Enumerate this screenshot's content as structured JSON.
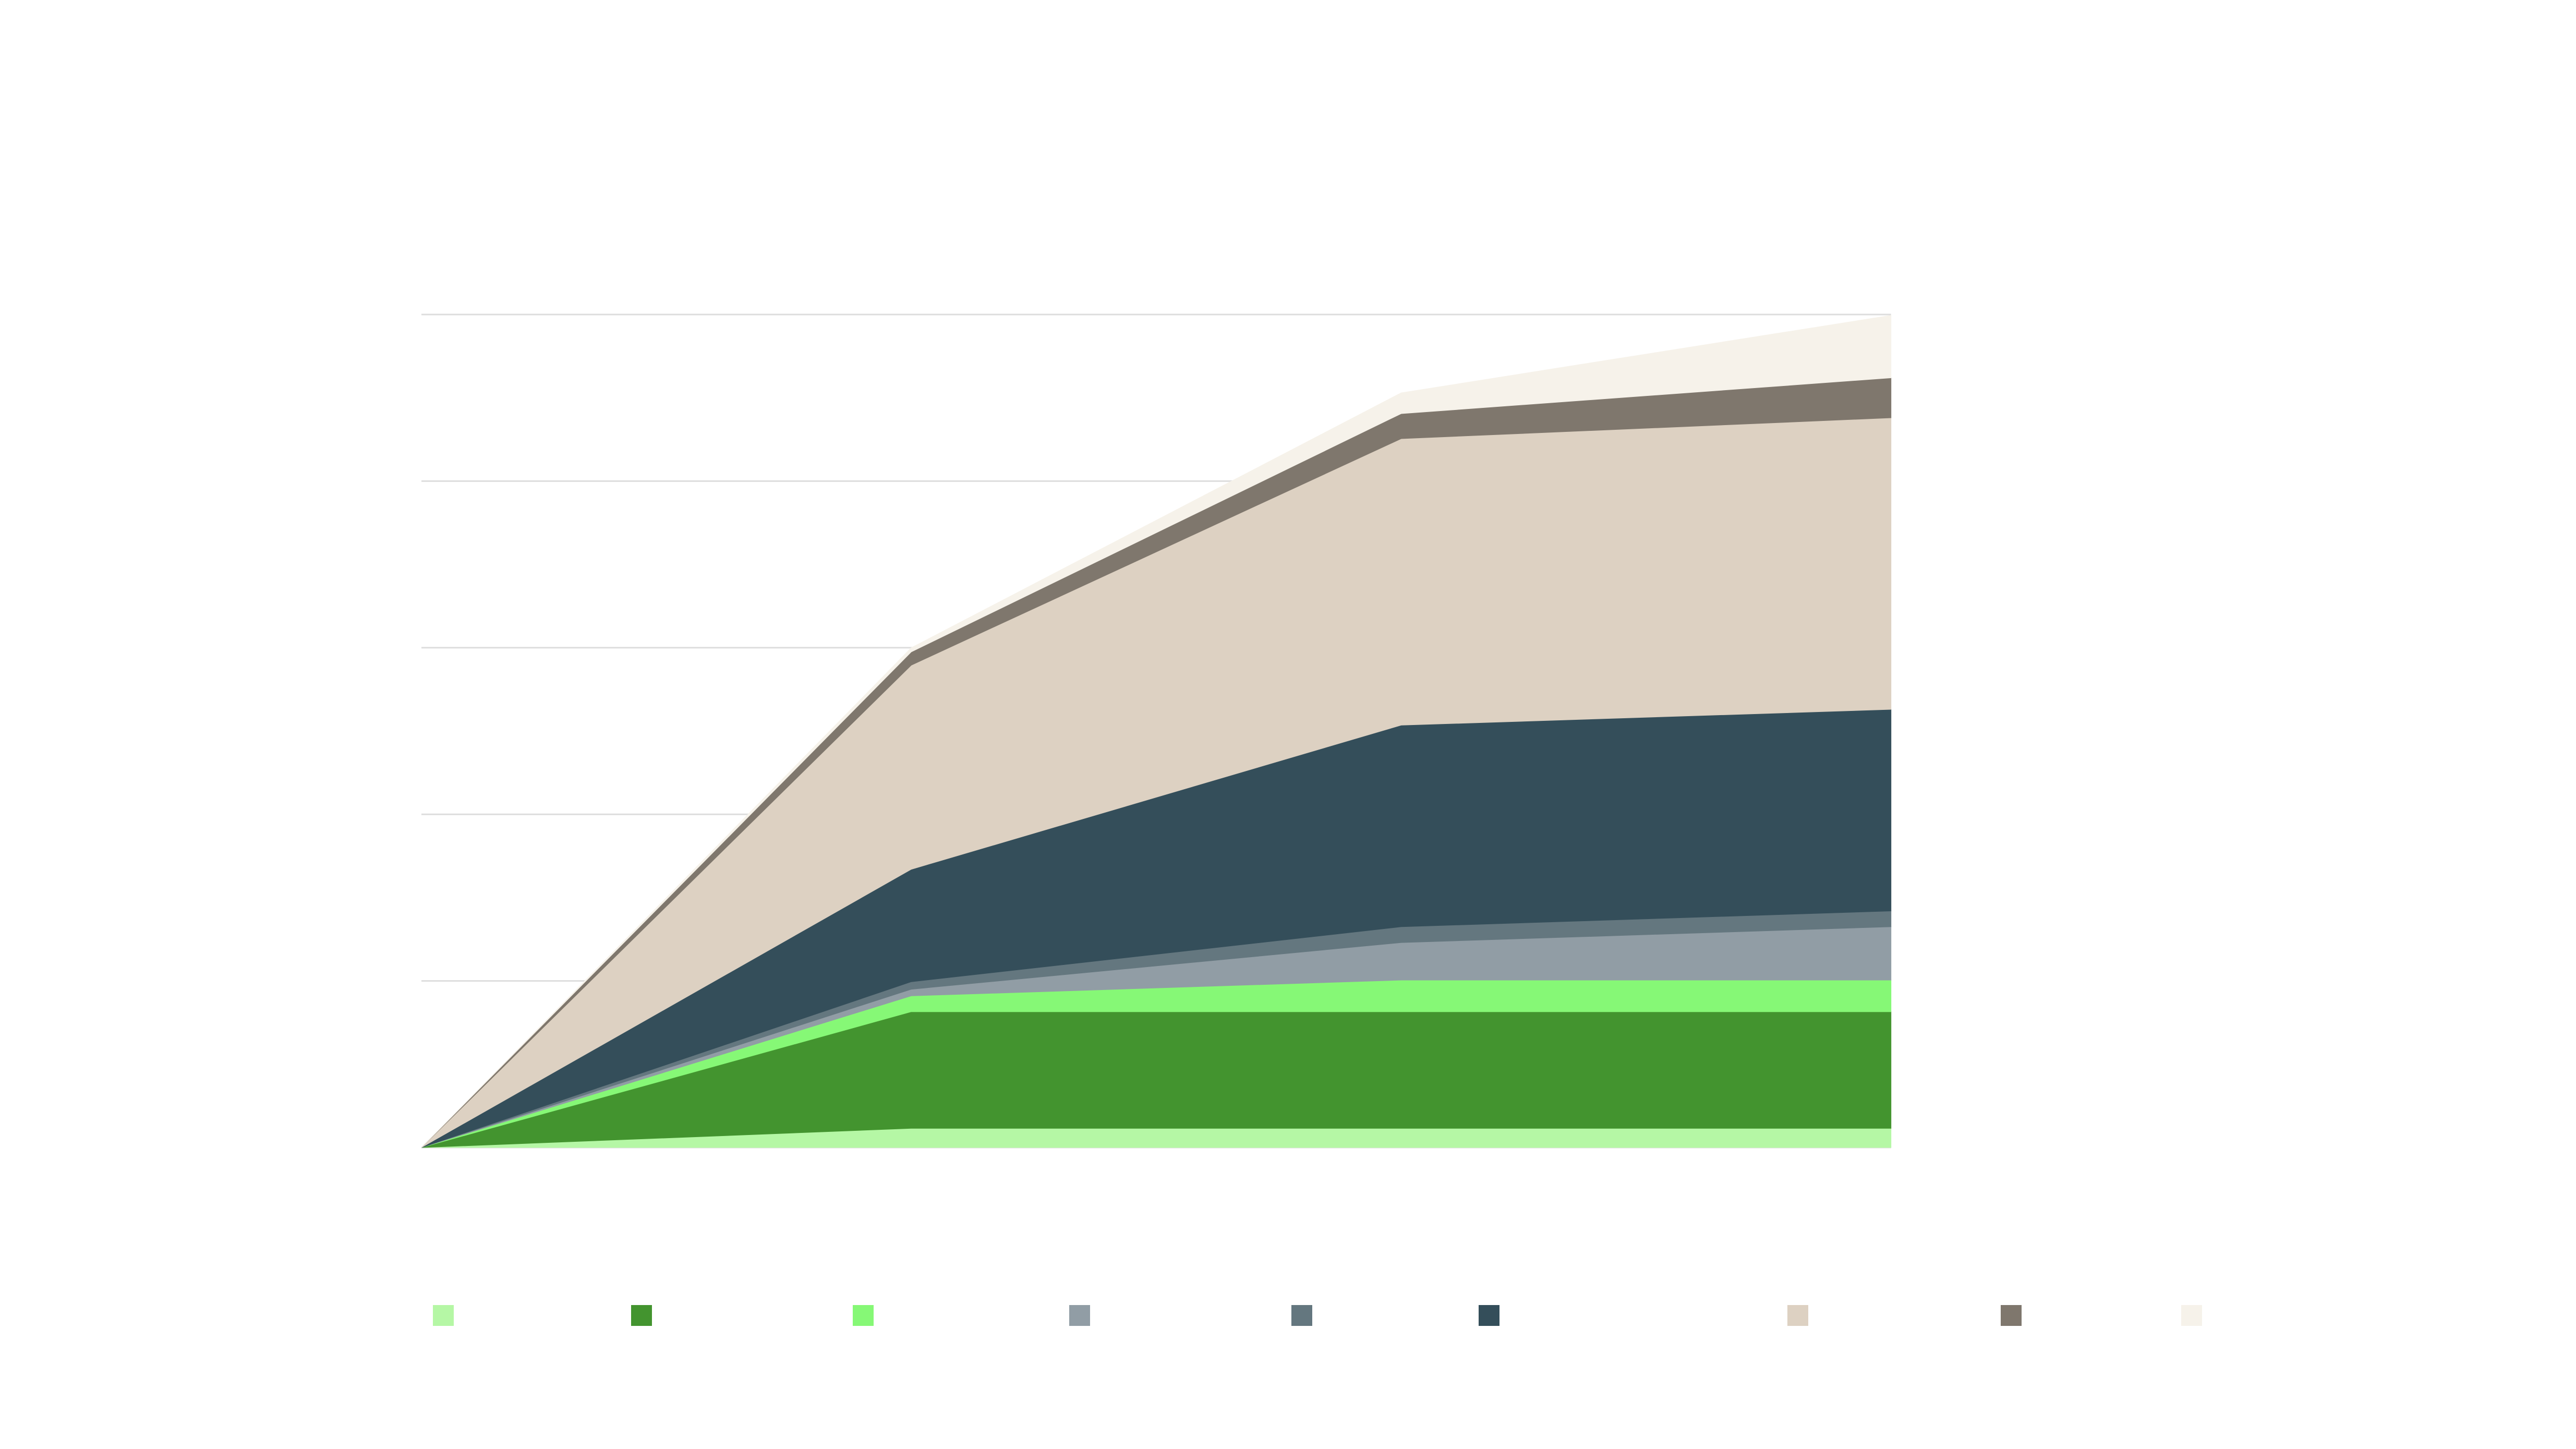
{
  "chart_data": {
    "type": "area",
    "stacked": true,
    "title": "",
    "xlabel": "",
    "ylabel": "",
    "x": [
      0,
      1,
      2,
      3
    ],
    "xlim": [
      0,
      3.72
    ],
    "ylim": [
      0,
      100
    ],
    "grid": true,
    "gridlines": [
      0,
      20,
      40,
      60,
      80,
      100
    ],
    "legend_position": "bottom",
    "series": [
      {
        "color": "#b5f7a5",
        "values": [
          0,
          2.3,
          2.3,
          2.3
        ]
      },
      {
        "color": "#43942f",
        "values": [
          0,
          14,
          14,
          14
        ]
      },
      {
        "color": "#86f876",
        "values": [
          0,
          1.9,
          3.8,
          3.8
        ]
      },
      {
        "color": "#919da5",
        "values": [
          0,
          0.8,
          4.5,
          6.4
        ]
      },
      {
        "color": "#64777f",
        "values": [
          0,
          0.9,
          1.9,
          1.9
        ]
      },
      {
        "color": "#344e5a",
        "values": [
          0,
          13.5,
          24.2,
          24.2
        ]
      },
      {
        "color": "#ddd1c2",
        "values": [
          0,
          24.5,
          34.4,
          35
        ]
      },
      {
        "color": "#7f776d",
        "values": [
          0,
          1.6,
          3.0,
          4.8
        ]
      },
      {
        "color": "#f6f2ea",
        "values": [
          0,
          0.5,
          2.5,
          7.5
        ]
      }
    ]
  }
}
